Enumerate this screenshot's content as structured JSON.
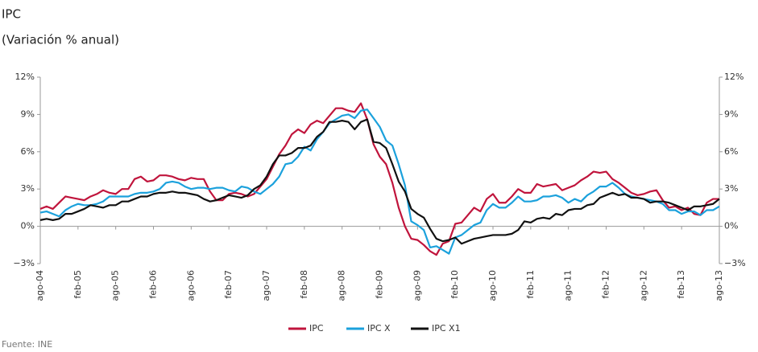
{
  "chart_data": {
    "type": "line",
    "title": "IPC",
    "subtitle": "(Variación % anual)",
    "source": "Fuente: INE",
    "categories": [
      "ago-04",
      null,
      null,
      null,
      null,
      null,
      "feb-05",
      null,
      null,
      null,
      null,
      null,
      "ago-05",
      null,
      null,
      null,
      null,
      null,
      "feb-06",
      null,
      null,
      null,
      null,
      null,
      "ago-06",
      null,
      null,
      null,
      null,
      null,
      "feb-07",
      null,
      null,
      null,
      null,
      null,
      "ago-07",
      null,
      null,
      null,
      null,
      null,
      "feb-08",
      null,
      null,
      null,
      null,
      null,
      "ago-08",
      null,
      null,
      null,
      null,
      null,
      "feb-09",
      null,
      null,
      null,
      null,
      null,
      "ago-09",
      null,
      null,
      null,
      null,
      null,
      "feb-10",
      null,
      null,
      null,
      null,
      null,
      "ago-10",
      null,
      null,
      null,
      null,
      null,
      "feb-11",
      null,
      null,
      null,
      null,
      null,
      "ago-11",
      null,
      null,
      null,
      null,
      null,
      "feb-12",
      null,
      null,
      null,
      null,
      null,
      "ago-12",
      null,
      null,
      null,
      null,
      null,
      "feb-13",
      null,
      null,
      null,
      null,
      null,
      "ago-13"
    ],
    "series": [
      {
        "name": "IPC",
        "color": "#c0143c",
        "values": [
          1.4,
          1.6,
          1.4,
          1.9,
          2.4,
          2.3,
          2.2,
          2.1,
          2.4,
          2.6,
          2.9,
          2.7,
          2.6,
          3.0,
          3.0,
          3.8,
          4.0,
          3.6,
          3.7,
          4.1,
          4.1,
          4.0,
          3.8,
          3.7,
          3.9,
          3.8,
          3.8,
          2.8,
          2.1,
          2.1,
          2.6,
          2.7,
          2.6,
          2.4,
          2.6,
          3.2,
          3.8,
          4.8,
          5.8,
          6.5,
          7.4,
          7.8,
          7.5,
          8.2,
          8.5,
          8.3,
          8.9,
          9.5,
          9.5,
          9.3,
          9.2,
          9.9,
          8.6,
          6.6,
          5.6,
          5.0,
          3.5,
          1.5,
          0.0,
          -1.0,
          -1.1,
          -1.5,
          -2.0,
          -2.3,
          -1.4,
          -1.2,
          0.2,
          0.3,
          0.9,
          1.5,
          1.2,
          2.2,
          2.6,
          1.9,
          1.9,
          2.4,
          3.0,
          2.7,
          2.7,
          3.4,
          3.2,
          3.3,
          3.4,
          2.9,
          3.1,
          3.3,
          3.7,
          4.0,
          4.4,
          4.3,
          4.4,
          3.8,
          3.5,
          3.1,
          2.7,
          2.5,
          2.6,
          2.8,
          2.9,
          2.1,
          1.5,
          1.6,
          1.3,
          1.5,
          1.0,
          0.9,
          1.9,
          2.2,
          2.2
        ]
      },
      {
        "name": "IPC X",
        "color": "#1ba1dc",
        "values": [
          1.1,
          1.2,
          1.0,
          0.8,
          1.3,
          1.6,
          1.8,
          1.7,
          1.7,
          1.8,
          2.0,
          2.4,
          2.4,
          2.4,
          2.4,
          2.6,
          2.7,
          2.7,
          2.8,
          3.0,
          3.5,
          3.6,
          3.5,
          3.2,
          3.0,
          3.1,
          3.1,
          3.0,
          3.1,
          3.1,
          2.9,
          2.8,
          3.2,
          3.1,
          2.8,
          2.6,
          3.0,
          3.4,
          4.0,
          5.0,
          5.1,
          5.6,
          6.4,
          6.1,
          7.0,
          7.6,
          8.3,
          8.6,
          8.9,
          9.0,
          8.7,
          9.3,
          9.4,
          8.7,
          8.0,
          6.9,
          6.5,
          5.0,
          3.3,
          0.4,
          0.1,
          -0.3,
          -1.7,
          -1.6,
          -1.9,
          -2.2,
          -0.9,
          -0.7,
          -0.3,
          0.1,
          0.3,
          1.3,
          1.8,
          1.5,
          1.5,
          1.9,
          2.4,
          2.0,
          2.0,
          2.1,
          2.4,
          2.4,
          2.5,
          2.3,
          1.9,
          2.2,
          2.0,
          2.5,
          2.8,
          3.2,
          3.2,
          3.5,
          3.1,
          2.6,
          2.4,
          2.3,
          2.2,
          2.1,
          2.0,
          1.8,
          1.3,
          1.3,
          1.0,
          1.2,
          1.2,
          0.9,
          1.3,
          1.3,
          1.6
        ]
      },
      {
        "name": "IPC X1",
        "color": "#111111",
        "values": [
          0.5,
          0.6,
          0.5,
          0.6,
          1.0,
          1.0,
          1.2,
          1.4,
          1.7,
          1.6,
          1.5,
          1.7,
          1.7,
          2.0,
          2.0,
          2.2,
          2.4,
          2.4,
          2.6,
          2.7,
          2.7,
          2.8,
          2.7,
          2.7,
          2.6,
          2.5,
          2.2,
          2.0,
          2.1,
          2.3,
          2.5,
          2.4,
          2.3,
          2.5,
          3.0,
          3.3,
          4.0,
          5.0,
          5.7,
          5.7,
          5.9,
          6.3,
          6.3,
          6.5,
          7.2,
          7.6,
          8.4,
          8.4,
          8.5,
          8.4,
          7.8,
          8.4,
          8.6,
          6.8,
          6.7,
          6.3,
          5.0,
          3.6,
          2.8,
          1.4,
          1.0,
          0.7,
          -0.2,
          -1.0,
          -1.2,
          -1.1,
          -0.9,
          -1.4,
          -1.2,
          -1.0,
          -0.9,
          -0.8,
          -0.7,
          -0.7,
          -0.7,
          -0.6,
          -0.3,
          0.4,
          0.3,
          0.6,
          0.7,
          0.6,
          1.0,
          0.9,
          1.3,
          1.4,
          1.4,
          1.7,
          1.8,
          2.3,
          2.5,
          2.7,
          2.5,
          2.6,
          2.3,
          2.3,
          2.2,
          1.9,
          2.0,
          2.0,
          1.9,
          1.7,
          1.5,
          1.3,
          1.6,
          1.6,
          1.7,
          1.8,
          2.2
        ]
      }
    ],
    "ylim": [
      -3,
      12
    ],
    "yticks": [
      {
        "value": -3,
        "label": "−3%"
      },
      {
        "value": 0,
        "label": "0%"
      },
      {
        "value": 3,
        "label": "3%"
      },
      {
        "value": 6,
        "label": "6%"
      },
      {
        "value": 9,
        "label": "9%"
      },
      {
        "value": 12,
        "label": "12%"
      }
    ],
    "y2lim": [
      -3,
      12
    ],
    "y2ticks": [
      {
        "value": -3,
        "label": "−3%"
      },
      {
        "value": 0,
        "label": "0%"
      },
      {
        "value": 3,
        "label": "3%"
      },
      {
        "value": 6,
        "label": "6%"
      },
      {
        "value": 9,
        "label": "9%"
      },
      {
        "value": 12,
        "label": "12%"
      }
    ],
    "legend": "bottom"
  }
}
